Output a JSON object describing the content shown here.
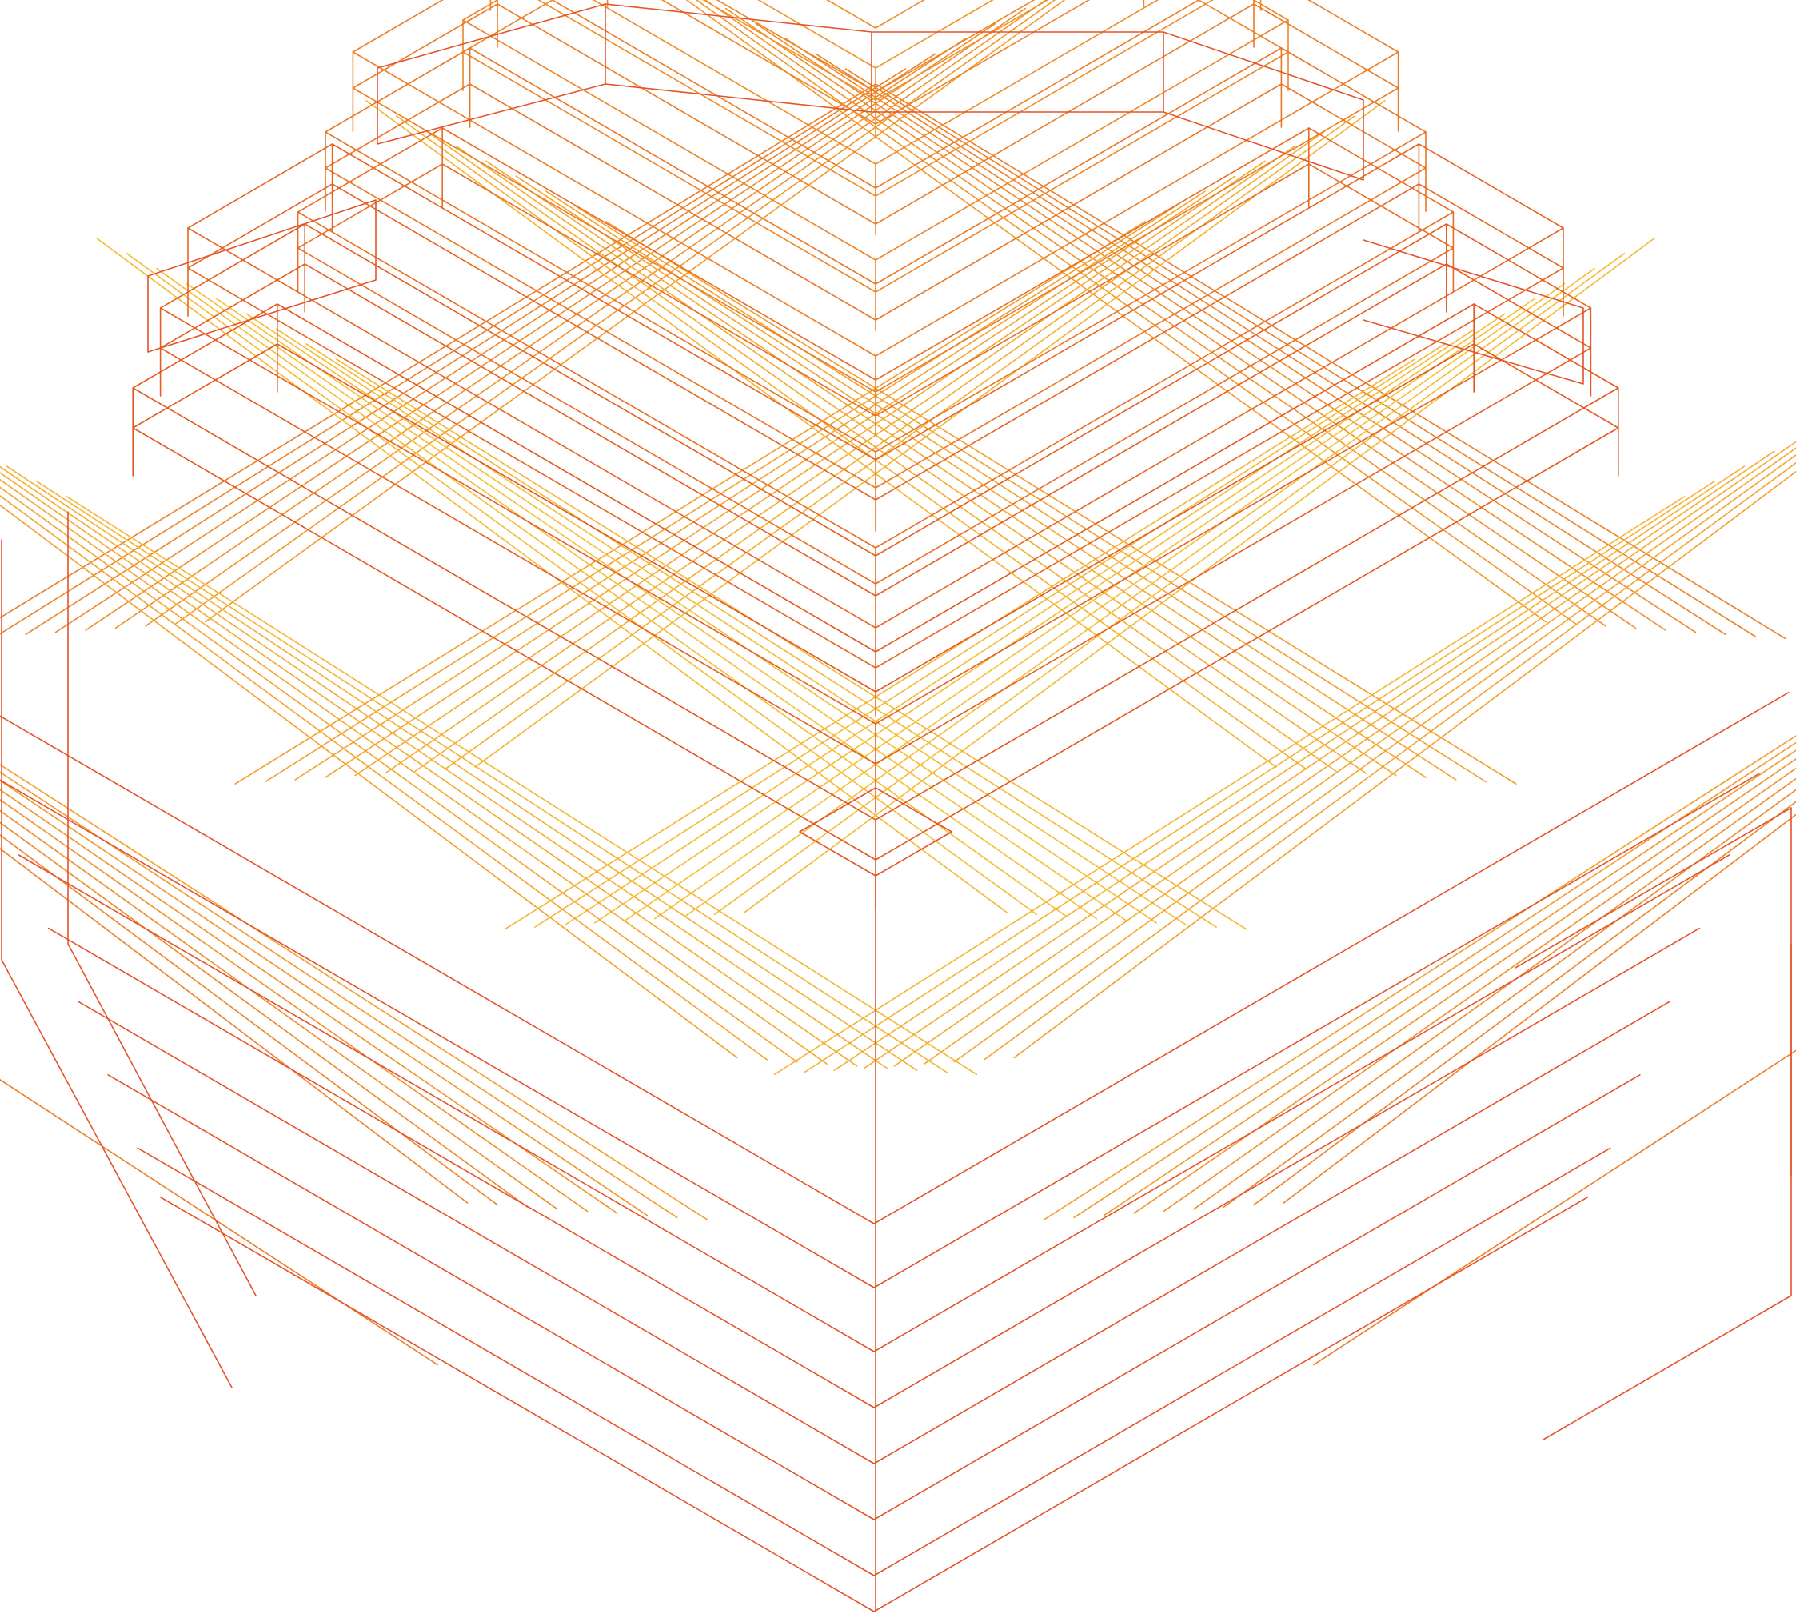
{
  "figure": {
    "subject": "wireframe-stepped-cross-structure",
    "palette": {
      "warm_light": "#f7d23a",
      "warm_mid": "#f29b2b",
      "warm_dark": "#e0501f",
      "outline": "#e3542a",
      "background": "#ffffff"
    }
  }
}
